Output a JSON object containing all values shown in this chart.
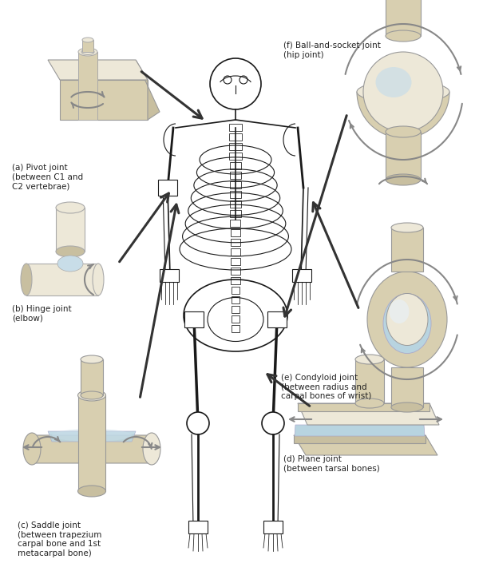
{
  "background_color": "#ffffff",
  "fig_width": 6.0,
  "fig_height": 7.15,
  "dpi": 100,
  "bone_tan": "#d8cfb0",
  "bone_light": "#ede8d8",
  "bone_mid": "#c8bfa0",
  "bone_dark": "#b0a888",
  "blue_cart": "#b8d4e0",
  "blue_cart2": "#c8dde8",
  "arrow_gray": "#888888",
  "arrow_dark": "#333333",
  "text_color": "#222222",
  "skeleton_color": "#1a1a1a",
  "labels": {
    "a": "(a) Pivot joint\n(between C1 and\nC2 vertebrae)",
    "b": "(b) Hinge joint\n(elbow)",
    "c": "(c) Saddle joint\n(between trapezium\ncarpal bone and 1st\nmetacarpal bone)",
    "d": "(d) Plane joint\n(between tarsal bones)",
    "e": "(e) Condyloid joint\n(between radius and\ncarpal bones of wrist)",
    "f": "(f) Ball-and-socket joint\n(hip joint)"
  }
}
